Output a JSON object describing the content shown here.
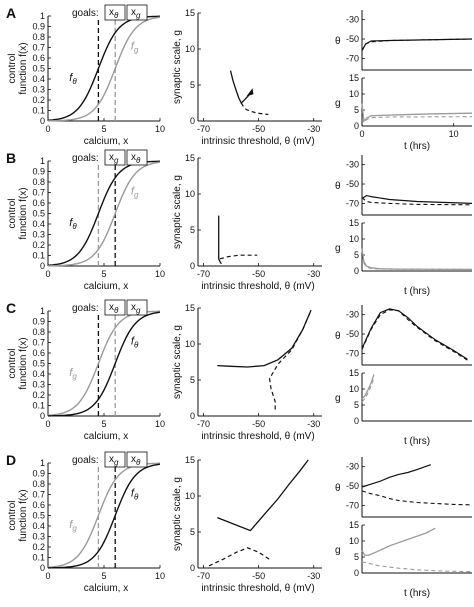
{
  "labels": {
    "goals": "goals:",
    "control_axis_line1": "control",
    "control_axis_line2": "function f(x)",
    "calcium_axis": "calcium, x",
    "scale_axis": "synaptic scale, g",
    "threshold_axis": "intrinsic threshold, θ (mV)",
    "time_axis": "t (hrs)",
    "theta_axis": "θ",
    "g_axis": "g",
    "f_theta": "f",
    "f_theta_sub": "θ",
    "f_g": "f",
    "f_g_sub": "g",
    "x_theta": "x",
    "x_theta_sub": "θ",
    "x_g": "x",
    "x_g_sub": "g"
  },
  "colors": {
    "black": "#111111",
    "gray": "#9a9a9a"
  },
  "panels": [
    {
      "label": "A",
      "goal_order": [
        "theta",
        "g"
      ]
    },
    {
      "label": "B",
      "goal_order": [
        "g",
        "theta"
      ]
    },
    {
      "label": "C",
      "goal_order": [
        "theta",
        "g"
      ]
    },
    {
      "label": "D",
      "goal_order": [
        "g",
        "theta"
      ]
    }
  ],
  "chart_data": [
    {
      "type": "line",
      "description_role": "control functions",
      "xlabel": "calcium, x",
      "ylabel": "control function f(x)",
      "xlim": [
        0,
        10
      ],
      "ylim": [
        0,
        1
      ],
      "xticks": [
        0,
        5,
        10
      ],
      "yticks": [
        0,
        0.1,
        0.2,
        0.3,
        0.4,
        0.5,
        0.6,
        0.7,
        0.8,
        0.9,
        1
      ],
      "rows": [
        {
          "panel": "A",
          "series": [
            {
              "name": "fθ",
              "color": "black",
              "midpoint": 4.5
            },
            {
              "name": "fg",
              "color": "gray",
              "midpoint": 6
            }
          ],
          "vlines": [
            {
              "x": 4.5,
              "color": "black",
              "style": "dashed"
            },
            {
              "x": 6,
              "color": "gray",
              "style": "dashed"
            }
          ]
        },
        {
          "panel": "B",
          "series": [
            {
              "name": "fθ",
              "color": "black",
              "midpoint": 4.5
            },
            {
              "name": "fg",
              "color": "gray",
              "midpoint": 6
            }
          ],
          "vlines": [
            {
              "x": 4.5,
              "color": "gray",
              "style": "dashed"
            },
            {
              "x": 6,
              "color": "black",
              "style": "dashed"
            }
          ]
        },
        {
          "panel": "C",
          "series": [
            {
              "name": "fg",
              "color": "gray",
              "midpoint": 4.5
            },
            {
              "name": "fθ",
              "color": "black",
              "midpoint": 6
            }
          ],
          "vlines": [
            {
              "x": 4.5,
              "color": "black",
              "style": "dashed"
            },
            {
              "x": 6,
              "color": "gray",
              "style": "dashed"
            }
          ]
        },
        {
          "panel": "D",
          "series": [
            {
              "name": "fg",
              "color": "gray",
              "midpoint": 4.5
            },
            {
              "name": "fθ",
              "color": "black",
              "midpoint": 6
            }
          ],
          "vlines": [
            {
              "x": 4.5,
              "color": "gray",
              "style": "dashed"
            },
            {
              "x": 6,
              "color": "black",
              "style": "dashed"
            }
          ]
        }
      ]
    },
    {
      "type": "line",
      "description_role": "phase plane",
      "xlabel": "intrinsic threshold, θ (mV)",
      "ylabel": "synaptic scale, g",
      "xlim": [
        -72,
        -27
      ],
      "xticks": [
        -70,
        -50,
        -30
      ],
      "rows": [
        {
          "panel": "A",
          "ylim": [
            0,
            15
          ],
          "yticks": [
            0,
            5,
            10,
            15
          ],
          "solid": [
            [
              -60.2,
              7.0
            ],
            [
              -59.3,
              5.6
            ],
            [
              -58.2,
              4.3
            ],
            [
              -57.2,
              3.2
            ],
            [
              -56.3,
              2.5
            ],
            [
              -55.2,
              2.9
            ],
            [
              -53.5,
              3.6
            ],
            [
              -52.6,
              4.0
            ]
          ],
          "dashed": [
            [
              -56.3,
              2.5
            ],
            [
              -55.5,
              2.0
            ],
            [
              -54.5,
              1.6
            ],
            [
              -52.5,
              1.3
            ],
            [
              -50.5,
              1.1
            ],
            [
              -48.5,
              1.0
            ],
            [
              -46.5,
              0.9
            ]
          ],
          "endpoint": [
            -52.6,
            4.0
          ]
        },
        {
          "panel": "B",
          "ylim": [
            0,
            15
          ],
          "yticks": [
            0,
            5,
            10,
            15
          ],
          "solid": [
            [
              -64.5,
              7.0
            ],
            [
              -64.5,
              2.0
            ],
            [
              -64.5,
              1.0
            ],
            [
              -64.0,
              0.6
            ],
            [
              -63.5,
              0.3
            ]
          ],
          "dashed": [
            [
              -64.0,
              1.0
            ],
            [
              -61.0,
              1.3
            ],
            [
              -57.0,
              1.5
            ],
            [
              -53.0,
              1.5
            ],
            [
              -50.5,
              1.5
            ]
          ]
        },
        {
          "panel": "C",
          "ylim": [
            0,
            15
          ],
          "yticks": [
            0,
            5,
            10,
            15
          ],
          "solid": [
            [
              -65.0,
              7.0
            ],
            [
              -60.0,
              6.9
            ],
            [
              -54.0,
              6.8
            ],
            [
              -48.0,
              7.0
            ],
            [
              -43.0,
              7.8
            ],
            [
              -38.0,
              9.4
            ],
            [
              -34.0,
              12.0
            ],
            [
              -31.0,
              14.7
            ]
          ],
          "dashed": [
            [
              -44.0,
              0.9
            ],
            [
              -44.0,
              2.0
            ],
            [
              -45.5,
              3.8
            ],
            [
              -46.0,
              5.2
            ],
            [
              -43.0,
              7.2
            ],
            [
              -38.0,
              9.2
            ],
            [
              -34.0,
              12.0
            ],
            [
              -31.0,
              14.7
            ]
          ]
        },
        {
          "panel": "D",
          "ylim": [
            0,
            15
          ],
          "yticks": [
            0,
            5,
            10,
            15
          ],
          "solid": [
            [
              -65.0,
              7.0
            ],
            [
              -53.0,
              5.2
            ],
            [
              -48.0,
              7.4
            ],
            [
              -43.0,
              9.6
            ],
            [
              -39.0,
              11.6
            ],
            [
              -35.0,
              13.5
            ],
            [
              -32.0,
              15.0
            ]
          ],
          "dashed": [
            [
              -68.0,
              0.3
            ],
            [
              -63.0,
              1.2
            ],
            [
              -58.0,
              2.2
            ],
            [
              -54.0,
              2.8
            ],
            [
              -50.0,
              2.2
            ],
            [
              -46.0,
              1.2
            ]
          ]
        }
      ]
    },
    {
      "type": "line",
      "description_role": "theta time course",
      "xlabel": "t (hrs)",
      "ylabel": "θ",
      "xlim": [
        0,
        12
      ],
      "ylim": [
        -82,
        -20
      ],
      "yticks": [
        -30,
        -50,
        -70
      ],
      "rows": [
        {
          "panel": "A",
          "xticks": [
            0,
            10
          ],
          "solid": [
            [
              0,
              -62
            ],
            [
              0.4,
              -55
            ],
            [
              1,
              -52
            ],
            [
              3,
              -51.5
            ],
            [
              6,
              -51
            ],
            [
              12,
              -50
            ]
          ],
          "dashed": [
            [
              0,
              -62
            ],
            [
              0.4,
              -55
            ],
            [
              1,
              -53
            ],
            [
              3,
              -51.5
            ],
            [
              6,
              -51
            ],
            [
              12,
              -50
            ]
          ]
        },
        {
          "panel": "B",
          "xticks": [],
          "solid": [
            [
              0,
              -65
            ],
            [
              0.5,
              -62
            ],
            [
              1,
              -63
            ],
            [
              3,
              -66
            ],
            [
              6,
              -68
            ],
            [
              12,
              -70
            ]
          ],
          "dashed": [
            [
              0,
              -64
            ],
            [
              0.5,
              -68
            ],
            [
              1,
              -69
            ],
            [
              3,
              -70
            ],
            [
              6,
              -71
            ],
            [
              12,
              -71.5
            ]
          ]
        },
        {
          "panel": "C",
          "xticks": [],
          "solid": [
            [
              0,
              -65
            ],
            [
              1,
              -44
            ],
            [
              2,
              -28
            ],
            [
              3,
              -24
            ],
            [
              4,
              -26
            ],
            [
              5,
              -33
            ],
            [
              6,
              -42
            ],
            [
              8,
              -56
            ],
            [
              10,
              -67
            ],
            [
              11.5,
              -76
            ]
          ],
          "dashed": [
            [
              0,
              -66
            ],
            [
              1,
              -45
            ],
            [
              2,
              -30
            ],
            [
              3,
              -25
            ],
            [
              4,
              -26
            ],
            [
              5,
              -35
            ],
            [
              6,
              -43
            ],
            [
              8,
              -57
            ],
            [
              10,
              -68
            ],
            [
              11.5,
              -77
            ]
          ]
        },
        {
          "panel": "D",
          "xticks": [],
          "solid": [
            [
              0,
              -51
            ],
            [
              1,
              -48
            ],
            [
              2,
              -45
            ],
            [
              3,
              -41
            ],
            [
              4,
              -38
            ],
            [
              5,
              -36
            ],
            [
              6,
              -33
            ],
            [
              7.5,
              -28
            ]
          ],
          "dashed": [
            [
              0,
              -55
            ],
            [
              1,
              -58
            ],
            [
              2,
              -60
            ],
            [
              3,
              -63
            ],
            [
              4,
              -65
            ],
            [
              6,
              -67
            ],
            [
              8,
              -68
            ],
            [
              10,
              -69
            ],
            [
              12,
              -69.5
            ]
          ]
        }
      ]
    },
    {
      "type": "line",
      "description_role": "g time course",
      "xlabel": "t (hrs)",
      "ylabel": "g",
      "xlim": [
        0,
        12
      ],
      "ylim": [
        0,
        15
      ],
      "yticks": [
        0,
        5,
        10,
        15
      ],
      "rows": [
        {
          "panel": "A",
          "xticks": [
            0,
            10
          ],
          "solid": [
            [
              0,
              7
            ],
            [
              0.2,
              1.5
            ],
            [
              0.5,
              2.5
            ],
            [
              1,
              3.2
            ],
            [
              2,
              3.3
            ],
            [
              4,
              3.5
            ],
            [
              8,
              3.8
            ],
            [
              12,
              4.0
            ]
          ],
          "dashed": [
            [
              0,
              7
            ],
            [
              0.2,
              1.2
            ],
            [
              0.5,
              2.0
            ],
            [
              1,
              2.6
            ],
            [
              3,
              2.8
            ],
            [
              12,
              2.9
            ]
          ]
        },
        {
          "panel": "B",
          "xticks": [],
          "solid": [
            [
              0,
              7
            ],
            [
              0.2,
              3
            ],
            [
              0.5,
              1.5
            ],
            [
              1,
              1.0
            ],
            [
              2,
              0.7
            ],
            [
              4,
              0.6
            ],
            [
              12,
              0.5
            ]
          ],
          "dashed": [
            [
              0,
              7
            ],
            [
              0.2,
              2.5
            ],
            [
              0.5,
              1.2
            ],
            [
              1,
              0.8
            ],
            [
              2,
              0.6
            ],
            [
              12,
              0.5
            ]
          ]
        },
        {
          "panel": "C",
          "xticks": [],
          "solid": [
            [
              0,
              7
            ],
            [
              0.3,
              7.8
            ],
            [
              0.7,
              10
            ],
            [
              1,
              12
            ],
            [
              1.3,
              14.5
            ]
          ],
          "dashed": [
            [
              0,
              6
            ],
            [
              0.3,
              7.0
            ],
            [
              0.7,
              9.0
            ],
            [
              1,
              11
            ],
            [
              1.3,
              13.5
            ]
          ]
        },
        {
          "panel": "D",
          "xticks": [],
          "solid": [
            [
              0,
              7
            ],
            [
              0.3,
              5.6
            ],
            [
              0.7,
              5.5
            ],
            [
              1.5,
              6.5
            ],
            [
              3,
              8.5
            ],
            [
              5,
              10.5
            ],
            [
              7,
              12.5
            ],
            [
              8,
              14
            ]
          ],
          "dashed": [
            [
              0,
              3.5
            ],
            [
              1,
              2.8
            ],
            [
              2,
              2.2
            ],
            [
              4,
              1.5
            ],
            [
              6,
              1.0
            ],
            [
              9,
              0.6
            ],
            [
              12,
              0.4
            ]
          ]
        }
      ]
    }
  ]
}
